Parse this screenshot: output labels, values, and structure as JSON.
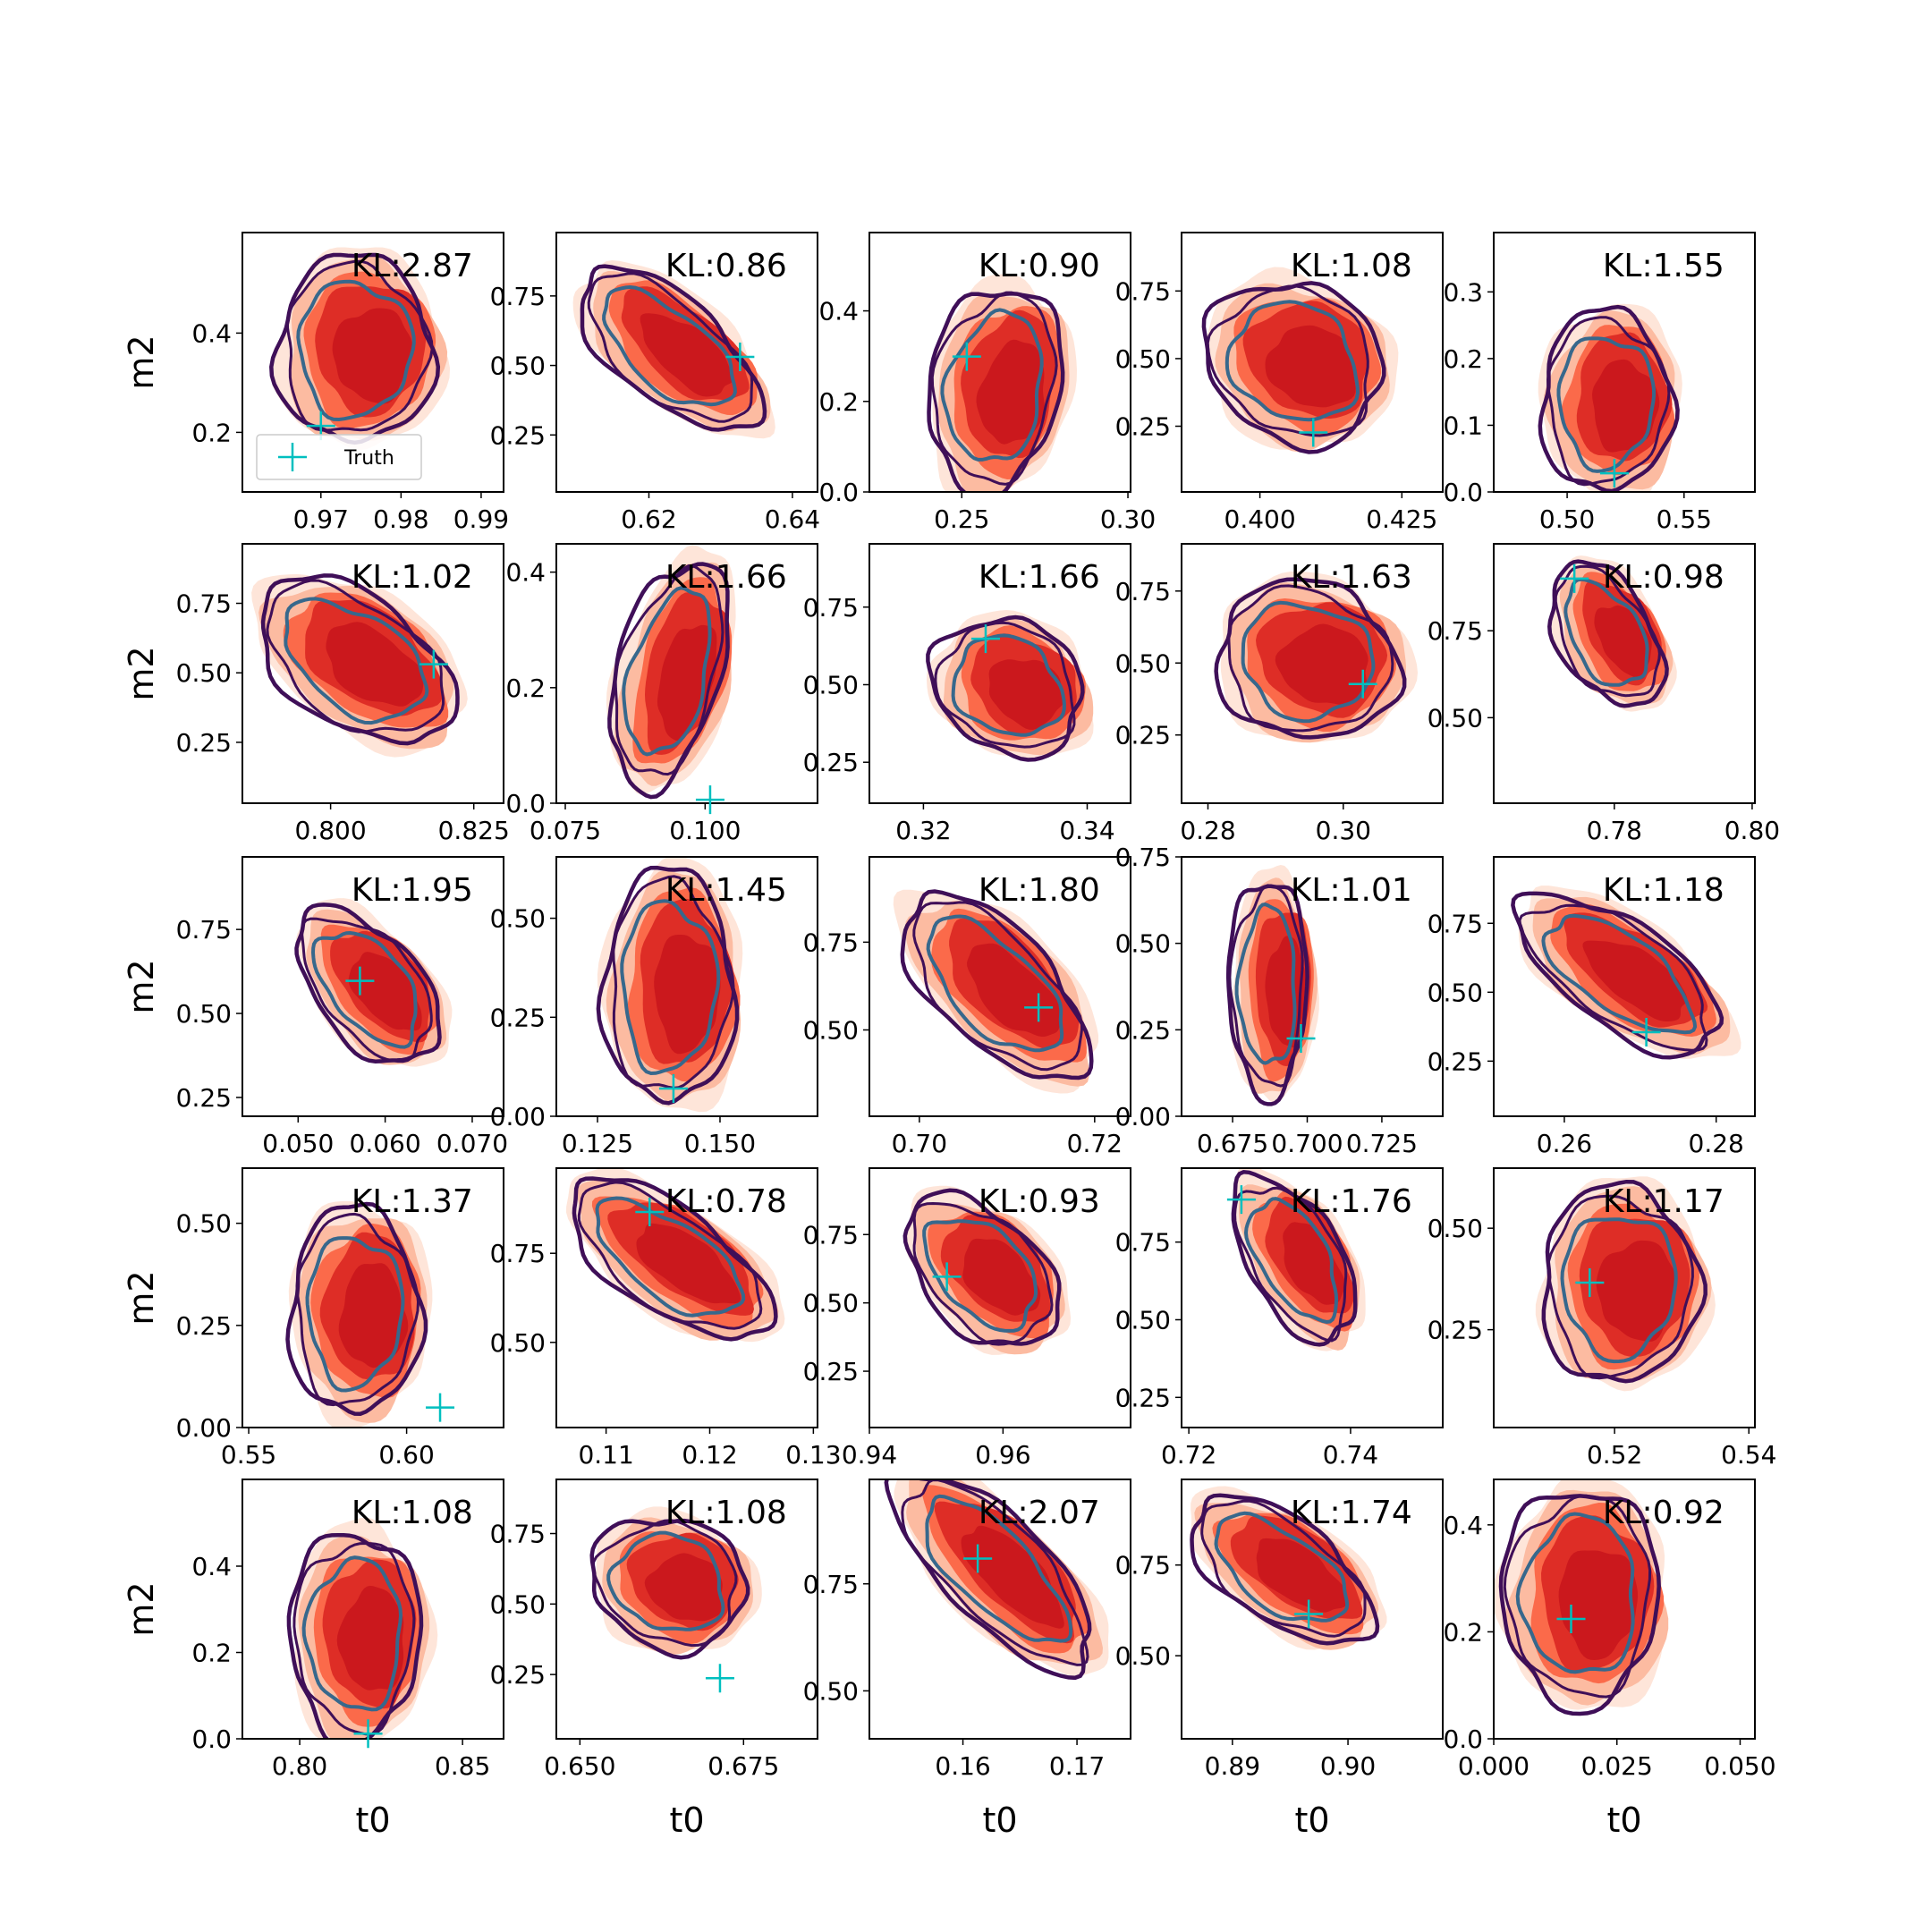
{
  "chart_data": [
    {
      "type": "scatter",
      "annotation": "KL:2.87",
      "ylabel": "m2",
      "xlim": [
        0.9602,
        0.9928
      ],
      "ylim": [
        0.08,
        0.6025
      ],
      "xticks": [
        0.97,
        0.98,
        0.99
      ],
      "yticks": [
        0.2,
        0.4
      ],
      "legend": "lower left",
      "series": [
        {
          "name": "Truth",
          "color": "#00bfbf",
          "x": [
            0.97
          ],
          "values": [
            0.213
          ]
        }
      ]
    },
    {
      "type": "scatter",
      "annotation": "KL:0.86",
      "xlim": [
        0.6071,
        0.6435
      ],
      "ylim": [
        0.045,
        0.978
      ],
      "xticks": [
        0.62,
        0.64
      ],
      "yticks": [
        0.25,
        {
          "value": 0.5,
          "label": "0.50"
        },
        0.75
      ],
      "series": [
        {
          "color": "#00bfbf",
          "x": [
            0.6327
          ],
          "values": [
            0.531
          ]
        }
      ]
    },
    {
      "type": "scatter",
      "annotation": "KL:0.90",
      "xlim": [
        0.2222,
        0.3008
      ],
      "ylim": [
        0,
        0.573
      ],
      "xticks": [
        0.25,
        {
          "value": 0.3,
          "label": "0.30"
        }
      ],
      "yticks": [
        {
          "value": 0,
          "label": "0.0"
        },
        0.2,
        0.4
      ],
      "series": [
        {
          "color": "#00bfbf",
          "x": [
            0.2515
          ],
          "values": [
            0.299
          ]
        }
      ]
    },
    {
      "type": "scatter",
      "annotation": "KL:1.08",
      "xlim": [
        0.3862,
        0.4322
      ],
      "ylim": [
        0.007,
        0.966
      ],
      "xticks": [
        {
          "value": 0.4,
          "label": "0.400"
        },
        0.425
      ],
      "yticks": [
        0.25,
        {
          "value": 0.5,
          "label": "0.50"
        },
        0.75
      ],
      "series": [
        {
          "color": "#00bfbf",
          "x": [
            0.4094
          ],
          "values": [
            0.227
          ]
        }
      ]
    },
    {
      "type": "scatter",
      "annotation": "KL:1.55",
      "xlim": [
        0.4686,
        0.5803
      ],
      "ylim": [
        0,
        0.389
      ],
      "xticks": [
        {
          "value": 0.5,
          "label": "0.50"
        },
        0.55
      ],
      "yticks": [
        {
          "value": 0,
          "label": "0.0"
        },
        0.1,
        0.2,
        0.3
      ],
      "series": [
        {
          "color": "#00bfbf",
          "x": [
            0.5202
          ],
          "values": [
            0.028
          ]
        }
      ]
    },
    {
      "type": "scatter",
      "annotation": "KL:1.02",
      "ylabel": "m2",
      "xlim": [
        0.7846,
        0.8302
      ],
      "ylim": [
        0.031,
        0.964
      ],
      "xticks": [
        {
          "value": 0.8,
          "label": "0.800"
        },
        0.825
      ],
      "yticks": [
        0.25,
        {
          "value": 0.5,
          "label": "0.50"
        },
        0.75
      ],
      "series": [
        {
          "color": "#00bfbf",
          "x": [
            0.818
          ],
          "values": [
            0.531
          ]
        }
      ]
    },
    {
      "type": "scatter",
      "annotation": "KL:1.66",
      "xlim": [
        0.0734,
        0.1201
      ],
      "ylim": [
        0,
        0.449
      ],
      "xticks": [
        0.075,
        {
          "value": 0.1,
          "label": "0.100"
        }
      ],
      "yticks": [
        {
          "value": 0,
          "label": "0.0"
        },
        0.2,
        0.4
      ],
      "series": [
        {
          "color": "#00bfbf",
          "x": [
            0.1009
          ],
          "values": [
            0.006
          ]
        }
      ]
    },
    {
      "type": "scatter",
      "annotation": "KL:1.66",
      "xlim": [
        0.3134,
        0.3453
      ],
      "ylim": [
        0.118,
        0.954
      ],
      "xticks": [
        0.32,
        0.34
      ],
      "yticks": [
        0.25,
        {
          "value": 0.5,
          "label": "0.50"
        },
        0.75
      ],
      "series": [
        {
          "color": "#00bfbf",
          "x": [
            0.3276
          ],
          "values": [
            0.648
          ]
        }
      ]
    },
    {
      "type": "scatter",
      "annotation": "KL:1.63",
      "xlim": [
        0.2761,
        0.3147
      ],
      "ylim": [
        0.013,
        0.914
      ],
      "xticks": [
        0.28,
        {
          "value": 0.3,
          "label": "0.30"
        }
      ],
      "yticks": [
        0.25,
        {
          "value": 0.5,
          "label": "0.50"
        },
        0.75
      ],
      "series": [
        {
          "color": "#00bfbf",
          "x": [
            0.3029
          ],
          "values": [
            0.427
          ]
        }
      ]
    },
    {
      "type": "scatter",
      "annotation": "KL:0.98",
      "xlim": [
        0.7625,
        0.8004
      ],
      "ylim": [
        0.254,
        1.0
      ],
      "xticks": [
        0.78,
        {
          "value": 0.8,
          "label": "0.80"
        }
      ],
      "yticks": [
        {
          "value": 0.5,
          "label": "0.50"
        },
        0.75
      ],
      "series": [
        {
          "color": "#00bfbf",
          "x": [
            0.7742
          ],
          "values": [
            0.9
          ]
        }
      ]
    },
    {
      "type": "scatter",
      "annotation": "KL:1.95",
      "ylabel": "m2",
      "xlim": [
        0.0436,
        0.0736
      ],
      "ylim": [
        0.194,
        0.966
      ],
      "xticks": [
        {
          "value": 0.05,
          "label": "0.050"
        },
        {
          "value": 0.06,
          "label": "0.060"
        },
        {
          "value": 0.07,
          "label": "0.070"
        }
      ],
      "yticks": [
        0.25,
        {
          "value": 0.5,
          "label": "0.50"
        },
        0.75
      ],
      "series": [
        {
          "color": "#00bfbf",
          "x": [
            0.0571
          ],
          "values": [
            0.597
          ]
        }
      ]
    },
    {
      "type": "scatter",
      "annotation": "KL:1.45",
      "xlim": [
        0.1166,
        0.1699
      ],
      "ylim": [
        0,
        0.655
      ],
      "xticks": [
        0.125,
        {
          "value": 0.15,
          "label": "0.150"
        }
      ],
      "yticks": [
        {
          "value": 0,
          "label": "0.00"
        },
        0.25,
        {
          "value": 0.5,
          "label": "0.50"
        }
      ],
      "series": [
        {
          "color": "#00bfbf",
          "x": [
            0.1405
          ],
          "values": [
            0.07
          ]
        }
      ]
    },
    {
      "type": "scatter",
      "annotation": "KL:1.80",
      "xlim": [
        0.6943,
        0.7241
      ],
      "ylim": [
        0.254,
        0.993
      ],
      "xticks": [
        {
          "value": 0.7,
          "label": "0.70"
        },
        0.72
      ],
      "yticks": [
        {
          "value": 0.5,
          "label": "0.50"
        },
        0.75
      ],
      "series": [
        {
          "color": "#00bfbf",
          "x": [
            0.7136
          ],
          "values": [
            0.564
          ]
        }
      ]
    },
    {
      "type": "scatter",
      "annotation": "KL:1.01",
      "xlim": [
        0.6579,
        0.7454
      ],
      "ylim": [
        0,
        0.75
      ],
      "xticks": [
        0.675,
        {
          "value": 0.7,
          "label": "0.700"
        },
        0.725
      ],
      "yticks": [
        {
          "value": 0,
          "label": "0.00"
        },
        0.25,
        {
          "value": 0.5,
          "label": "0.50"
        },
        0.75
      ],
      "series": [
        {
          "color": "#00bfbf",
          "x": [
            0.6979
          ],
          "values": [
            0.225
          ]
        }
      ]
    },
    {
      "type": "scatter",
      "annotation": "KL:1.18",
      "xlim": [
        0.2507,
        0.2851
      ],
      "ylim": [
        0.05,
        0.991
      ],
      "xticks": [
        0.26,
        0.28
      ],
      "yticks": [
        0.25,
        {
          "value": 0.5,
          "label": "0.50"
        },
        0.75
      ],
      "series": [
        {
          "color": "#00bfbf",
          "x": [
            0.2708
          ],
          "values": [
            0.355
          ]
        }
      ]
    },
    {
      "type": "scatter",
      "annotation": "KL:1.37",
      "ylabel": "m2",
      "xlim": [
        0.548,
        0.6307
      ],
      "ylim": [
        0,
        0.635
      ],
      "xticks": [
        0.55,
        {
          "value": 0.6,
          "label": "0.60"
        }
      ],
      "yticks": [
        {
          "value": 0,
          "label": "0.00"
        },
        0.25,
        {
          "value": 0.5,
          "label": "0.50"
        }
      ],
      "series": [
        {
          "color": "#00bfbf",
          "x": [
            0.6106
          ],
          "values": [
            0.049
          ]
        }
      ]
    },
    {
      "type": "scatter",
      "annotation": "KL:0.78",
      "xlim": [
        0.1052,
        0.1304
      ],
      "ylim": [
        0.261,
        0.989
      ],
      "xticks": [
        0.11,
        0.12,
        0.13
      ],
      "yticks": [
        {
          "value": 0.5,
          "label": "0.50"
        },
        0.75
      ],
      "series": [
        {
          "color": "#00bfbf",
          "x": [
            0.1142
          ],
          "values": [
            0.866
          ]
        }
      ]
    },
    {
      "type": "scatter",
      "annotation": "KL:0.93",
      "xlim": [
        0.94,
        0.9791
      ],
      "ylim": [
        0.044,
        0.993
      ],
      "xticks": [
        0.94,
        0.96
      ],
      "yticks": [
        0.25,
        {
          "value": 0.5,
          "label": "0.50"
        },
        0.75
      ],
      "series": [
        {
          "color": "#00bfbf",
          "x": [
            0.9516
          ],
          "values": [
            0.596
          ]
        }
      ]
    },
    {
      "type": "scatter",
      "annotation": "KL:1.76",
      "xlim": [
        0.7191,
        0.7514
      ],
      "ylim": [
        0.153,
        0.988
      ],
      "xticks": [
        0.72,
        0.74
      ],
      "yticks": [
        0.25,
        {
          "value": 0.5,
          "label": "0.50"
        },
        0.75
      ],
      "series": [
        {
          "color": "#00bfbf",
          "x": [
            0.7265
          ],
          "values": [
            0.887
          ]
        }
      ]
    },
    {
      "type": "scatter",
      "annotation": "KL:1.17",
      "xlim": [
        0.502,
        0.5409
      ],
      "ylim": [
        0.009,
        0.648
      ],
      "xticks": [
        0.52,
        0.54
      ],
      "yticks": [
        0.25,
        {
          "value": 0.5,
          "label": "0.50"
        }
      ],
      "series": [
        {
          "color": "#00bfbf",
          "x": [
            0.5163
          ],
          "values": [
            0.366
          ]
        }
      ]
    },
    {
      "type": "scatter",
      "annotation": "KL:1.08",
      "ylabel": "m2",
      "xlabel": "t0",
      "xlim": [
        0.7824,
        0.8626
      ],
      "ylim": [
        0,
        0.601
      ],
      "xticks": [
        {
          "value": 0.8,
          "label": "0.80"
        },
        0.85
      ],
      "yticks": [
        {
          "value": 0,
          "label": "0.0"
        },
        0.2,
        0.4
      ],
      "series": [
        {
          "color": "#00bfbf",
          "x": [
            0.821
          ],
          "values": [
            0.012
          ]
        }
      ]
    },
    {
      "type": "scatter",
      "annotation": "KL:1.08",
      "xlabel": "t0",
      "xlim": [
        0.6464,
        0.6863
      ],
      "ylim": [
        0.022,
        0.942
      ],
      "xticks": [
        {
          "value": 0.65,
          "label": "0.650"
        },
        0.675
      ],
      "yticks": [
        0.25,
        {
          "value": 0.5,
          "label": "0.50"
        },
        0.75
      ],
      "series": [
        {
          "color": "#00bfbf",
          "x": [
            0.6714
          ],
          "values": [
            0.237
          ]
        }
      ]
    },
    {
      "type": "scatter",
      "annotation": "KL:2.07",
      "xlabel": "t0",
      "xlim": [
        0.1518,
        0.1747
      ],
      "ylim": [
        0.388,
        0.994
      ],
      "xticks": [
        0.16,
        0.17
      ],
      "yticks": [
        {
          "value": 0.5,
          "label": "0.50"
        },
        0.75
      ],
      "series": [
        {
          "color": "#00bfbf",
          "x": [
            0.1613
          ],
          "values": [
            0.809
          ]
        }
      ]
    },
    {
      "type": "scatter",
      "annotation": "KL:1.74",
      "xlabel": "t0",
      "xlim": [
        0.8856,
        0.9082
      ],
      "ylim": [
        0.271,
        0.986
      ],
      "xticks": [
        0.89,
        {
          "value": 0.9,
          "label": "0.90"
        }
      ],
      "yticks": [
        {
          "value": 0.5,
          "label": "0.50"
        },
        0.75
      ],
      "series": [
        {
          "color": "#00bfbf",
          "x": [
            0.8966
          ],
          "values": [
            0.615
          ]
        }
      ]
    },
    {
      "type": "scatter",
      "annotation": "KL:0.92",
      "xlabel": "t0",
      "xlim": [
        0,
        0.053
      ],
      "ylim": [
        0,
        0.485
      ],
      "xticks": [
        {
          "value": 0,
          "label": "0.000"
        },
        0.025,
        {
          "value": 0.05,
          "label": "0.050"
        }
      ],
      "yticks": [
        {
          "value": 0,
          "label": "0.0"
        },
        0.2,
        0.4
      ],
      "series": [
        {
          "color": "#00bfbf",
          "x": [
            0.0157
          ],
          "values": [
            0.224
          ]
        }
      ]
    }
  ]
}
